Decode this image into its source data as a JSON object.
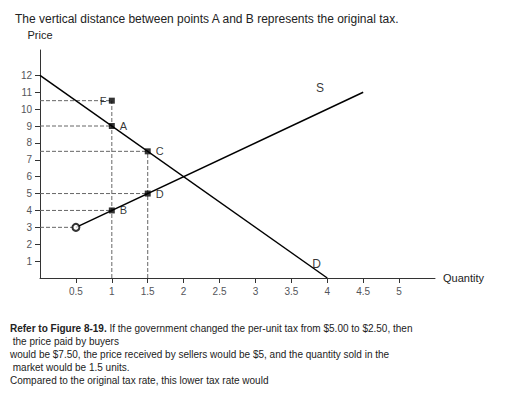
{
  "chart_data": {
    "type": "line",
    "title": "The vertical distance between points A and B represents the original tax.",
    "footer_lead": "Refer to Figure 8-19.",
    "footer": [
      " If the government changed the per-unit tax from $5.00 to $2.50, then the price paid by buyers",
      "would be $7.50, the price received by sellers would be $5, and the quantity sold in the market would be 1.5 units.",
      "Compared to the original tax rate, this lower tax rate would"
    ],
    "xlabel": "Quantity",
    "ylabel": "Price",
    "xlim": [
      0,
      5.5
    ],
    "ylim": [
      0,
      13.5
    ],
    "xticks": [
      0.5,
      1,
      1.5,
      2,
      2.5,
      3,
      3.5,
      4,
      4.5,
      5
    ],
    "yticks": [
      1,
      2,
      3,
      4,
      5,
      6,
      7,
      8,
      9,
      10,
      11,
      12
    ],
    "grid": false,
    "series": [
      {
        "type": "line",
        "color": "black",
        "x": [
          0,
          4
        ],
        "values": [
          12,
          0
        ]
      },
      {
        "type": "line",
        "color": "black",
        "x": [
          0.5,
          4.5
        ],
        "values": [
          3,
          11
        ]
      },
      {
        "type": "line",
        "line_style": "dashed",
        "color": "#666666",
        "x": [
          0,
          1.0
        ],
        "values": [
          10.5,
          10.5
        ]
      },
      {
        "type": "line",
        "line_style": "dashed",
        "color": "#666666",
        "x": [
          1.0,
          1.0
        ],
        "values": [
          0,
          10.5
        ]
      },
      {
        "type": "line",
        "line_style": "dashed",
        "color": "#666666",
        "x": [
          0,
          1.0
        ],
        "values": [
          9.0,
          9.0
        ]
      },
      {
        "type": "line",
        "line_style": "dashed",
        "color": "#666666",
        "x": [
          0,
          1.5
        ],
        "values": [
          7.5,
          7.5
        ]
      },
      {
        "type": "line",
        "line_style": "dashed",
        "color": "#666666",
        "x": [
          1.5,
          1.5
        ],
        "values": [
          0,
          7.5
        ]
      },
      {
        "type": "line",
        "line_style": "dashed",
        "color": "#666666",
        "x": [
          0,
          1.5
        ],
        "values": [
          5.0,
          5.0
        ]
      },
      {
        "type": "line",
        "line_style": "dashed",
        "color": "#666666",
        "x": [
          0,
          1.0
        ],
        "values": [
          4.0,
          4.0
        ]
      },
      {
        "type": "line",
        "line_style": "dashed",
        "color": "#666666",
        "x": [
          0,
          0.5
        ],
        "values": [
          3.0,
          3.0
        ]
      },
      {
        "type": "scatter",
        "marker": "square",
        "color": "black",
        "x": [
          1.0,
          1.0,
          1.5,
          1.5,
          1.0
        ],
        "values": [
          10.5,
          9.0,
          7.5,
          5.0,
          4.0
        ],
        "labels": [
          "F",
          "A",
          "C",
          "D",
          "B"
        ]
      },
      {
        "type": "scatter",
        "marker": "circle",
        "color": "black",
        "x": [
          0.5
        ],
        "values": [
          3.0
        ]
      }
    ],
    "annotations": [
      {
        "text": "D",
        "x": 3.85,
        "y": 0.2
      },
      {
        "text": "S",
        "x": 3.9,
        "y": 10.6
      }
    ]
  }
}
